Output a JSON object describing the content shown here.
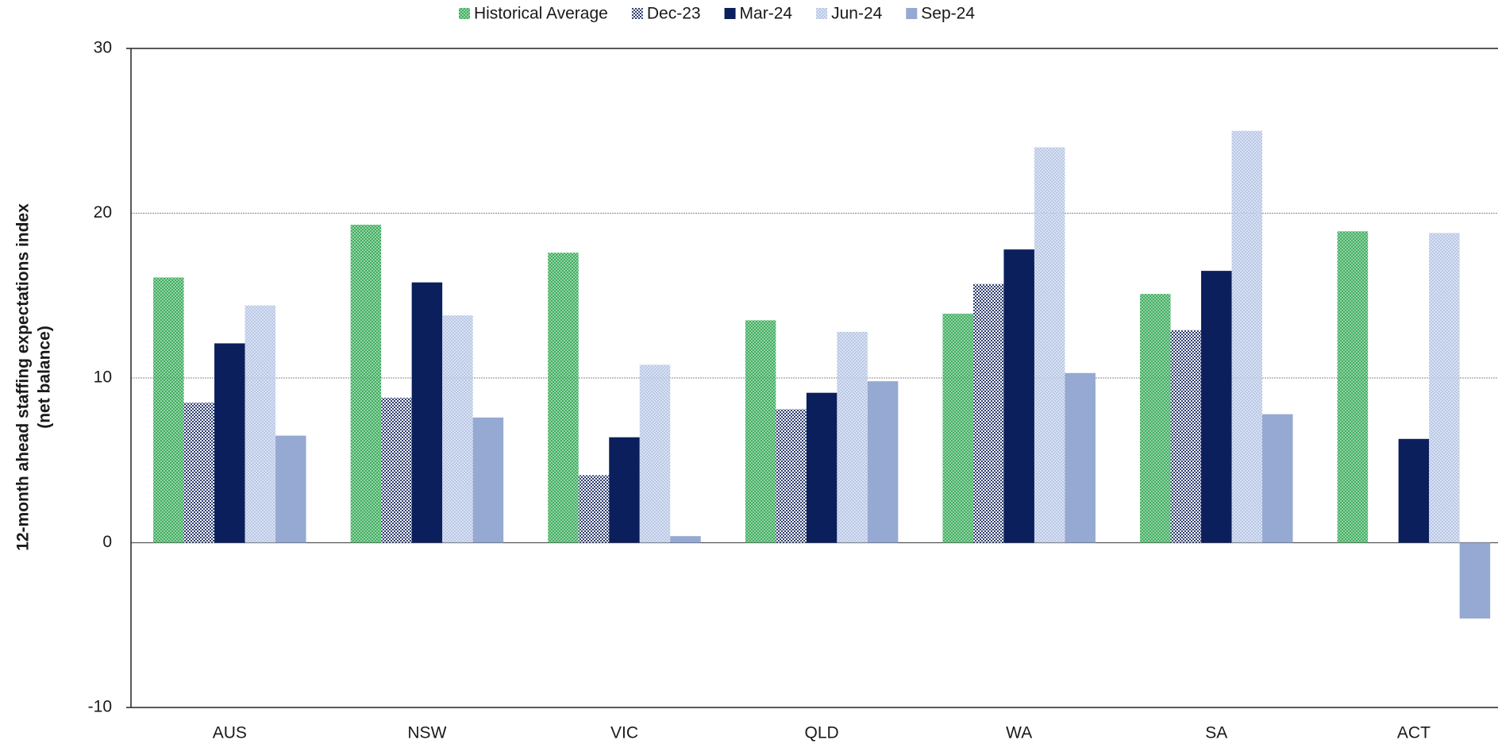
{
  "chart_data": {
    "type": "bar",
    "ylabel": [
      "12-month ahead staffing expectations index",
      "(net balance)"
    ],
    "categories": [
      "AUS",
      "NSW",
      "VIC",
      "QLD",
      "WA",
      "SA",
      "ACT"
    ],
    "series": [
      {
        "name": "Historical Average",
        "color": "#3fae5f",
        "pattern": "dots",
        "values": [
          16.1,
          19.3,
          17.6,
          13.5,
          13.9,
          15.1,
          18.9
        ]
      },
      {
        "name": "Dec-23",
        "color": "#2e3d70",
        "pattern": "checker",
        "values": [
          8.5,
          8.8,
          4.1,
          8.1,
          15.7,
          12.9,
          null
        ]
      },
      {
        "name": "Mar-24",
        "color": "#0b1f5c",
        "pattern": "solid",
        "values": [
          12.1,
          15.8,
          6.4,
          9.1,
          17.8,
          16.5,
          6.3
        ]
      },
      {
        "name": "Jun-24",
        "color": "#b9c8e6",
        "pattern": "dots",
        "values": [
          14.4,
          13.8,
          10.8,
          12.8,
          24.0,
          25.0,
          18.8
        ]
      },
      {
        "name": "Sep-24",
        "color": "#95a9d2",
        "pattern": "solid",
        "values": [
          6.5,
          7.6,
          0.4,
          9.8,
          10.3,
          7.8,
          -4.6
        ]
      }
    ],
    "ylim": [
      -10,
      30
    ],
    "yticks": [
      -10,
      0,
      10,
      20,
      30
    ],
    "grid": true
  }
}
